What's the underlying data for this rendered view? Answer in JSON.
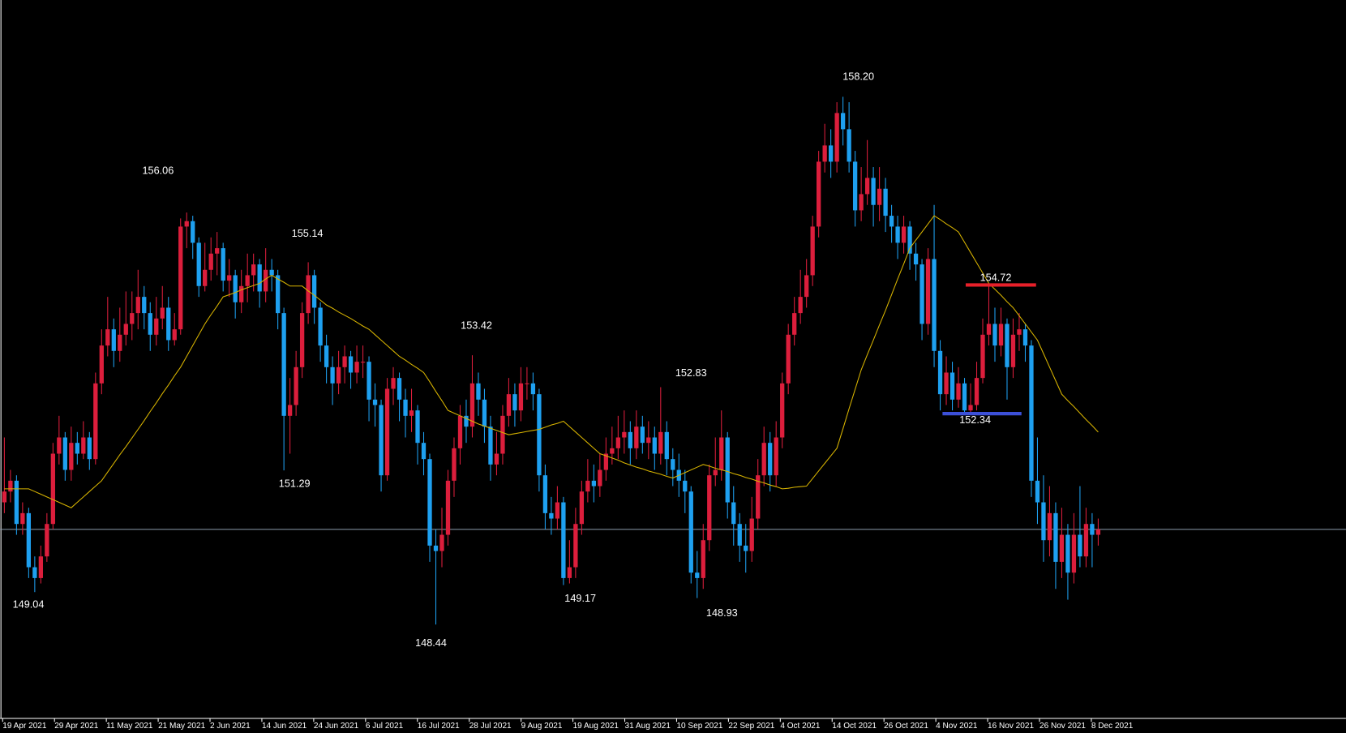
{
  "chart_data": {
    "type": "candlestick",
    "up_color": "#dc1e3c",
    "down_color": "#1ea0f0",
    "background": "#000000",
    "ylim": [
      146.72,
      159.99
    ],
    "current_price": 150.2,
    "candles": [
      [
        150.7,
        151.9,
        150.5,
        150.9
      ],
      [
        150.9,
        151.3,
        150.7,
        151.1
      ],
      [
        151.1,
        151.2,
        150.1,
        150.3
      ],
      [
        150.3,
        150.7,
        150.1,
        150.5
      ],
      [
        150.5,
        150.6,
        149.3,
        149.5
      ],
      [
        149.5,
        149.7,
        149.04,
        149.3
      ],
      [
        149.3,
        149.9,
        149.2,
        149.7
      ],
      [
        149.7,
        150.5,
        149.6,
        150.3
      ],
      [
        150.3,
        151.8,
        150.2,
        151.6
      ],
      [
        151.6,
        152.3,
        151.4,
        151.9
      ],
      [
        151.9,
        152.0,
        151.1,
        151.3
      ],
      [
        151.3,
        152.1,
        151.1,
        151.8
      ],
      [
        151.8,
        152.0,
        151.4,
        151.6
      ],
      [
        151.6,
        152.2,
        151.5,
        151.9
      ],
      [
        151.9,
        152.0,
        151.3,
        151.5
      ],
      [
        151.5,
        153.1,
        151.4,
        152.9
      ],
      [
        152.9,
        153.9,
        152.7,
        153.6
      ],
      [
        153.6,
        154.5,
        153.4,
        153.9
      ],
      [
        153.9,
        154.1,
        153.2,
        153.5
      ],
      [
        153.5,
        154.3,
        153.3,
        153.8
      ],
      [
        153.8,
        154.6,
        153.6,
        154.0
      ],
      [
        154.0,
        154.6,
        153.7,
        154.2
      ],
      [
        154.2,
        155.0,
        153.9,
        154.5
      ],
      [
        154.5,
        154.7,
        153.9,
        154.2
      ],
      [
        154.2,
        154.4,
        153.5,
        153.8
      ],
      [
        153.8,
        154.5,
        153.6,
        154.1
      ],
      [
        154.1,
        154.7,
        153.9,
        154.3
      ],
      [
        154.3,
        154.5,
        153.5,
        153.7
      ],
      [
        153.7,
        154.2,
        153.6,
        153.9
      ],
      [
        153.9,
        155.95,
        153.8,
        155.8
      ],
      [
        155.8,
        156.06,
        155.4,
        155.9
      ],
      [
        155.9,
        156.0,
        155.2,
        155.5
      ],
      [
        155.5,
        155.6,
        154.5,
        154.7
      ],
      [
        154.7,
        155.5,
        154.6,
        155.0
      ],
      [
        155.0,
        155.6,
        154.8,
        155.3
      ],
      [
        155.3,
        155.7,
        154.9,
        155.4
      ],
      [
        155.4,
        155.5,
        154.6,
        154.8
      ],
      [
        154.8,
        155.2,
        154.5,
        154.9
      ],
      [
        154.9,
        155.0,
        154.1,
        154.4
      ],
      [
        154.4,
        155.0,
        154.2,
        154.7
      ],
      [
        154.7,
        155.3,
        154.4,
        154.9
      ],
      [
        154.9,
        155.3,
        154.6,
        155.1
      ],
      [
        155.1,
        155.2,
        154.3,
        154.6
      ],
      [
        154.6,
        155.4,
        154.4,
        155.0
      ],
      [
        155.0,
        155.2,
        154.6,
        154.9
      ],
      [
        154.9,
        155.0,
        153.9,
        154.2
      ],
      [
        154.2,
        154.3,
        151.29,
        152.3
      ],
      [
        152.3,
        153.0,
        151.6,
        152.5
      ],
      [
        152.5,
        153.5,
        152.3,
        153.2
      ],
      [
        153.2,
        154.4,
        153.0,
        154.2
      ],
      [
        154.2,
        155.14,
        154.0,
        154.9
      ],
      [
        154.9,
        155.0,
        154.0,
        154.3
      ],
      [
        154.3,
        154.4,
        153.3,
        153.6
      ],
      [
        153.6,
        153.8,
        152.9,
        153.2
      ],
      [
        153.2,
        153.4,
        152.5,
        152.9
      ],
      [
        152.9,
        153.5,
        152.7,
        153.2
      ],
      [
        153.2,
        153.6,
        152.9,
        153.4
      ],
      [
        153.4,
        153.5,
        152.8,
        153.1
      ],
      [
        153.1,
        153.6,
        152.9,
        153.3
      ],
      [
        153.3,
        153.6,
        153.0,
        153.3
      ],
      [
        153.3,
        153.4,
        152.2,
        152.6
      ],
      [
        152.6,
        152.9,
        152.1,
        152.5
      ],
      [
        152.5,
        152.6,
        150.9,
        151.2
      ],
      [
        151.2,
        153.0,
        151.1,
        152.8
      ],
      [
        152.8,
        153.2,
        152.5,
        153.0
      ],
      [
        153.0,
        153.1,
        152.2,
        152.6
      ],
      [
        152.6,
        152.8,
        151.9,
        152.3
      ],
      [
        152.3,
        152.8,
        152.0,
        152.4
      ],
      [
        152.4,
        152.5,
        151.4,
        151.8
      ],
      [
        151.8,
        152.0,
        151.2,
        151.5
      ],
      [
        151.5,
        151.6,
        149.6,
        149.9
      ],
      [
        149.9,
        150.2,
        148.44,
        149.8
      ],
      [
        149.8,
        150.6,
        149.5,
        150.1
      ],
      [
        150.1,
        151.3,
        149.9,
        151.1
      ],
      [
        151.1,
        151.9,
        150.8,
        151.7
      ],
      [
        151.7,
        152.5,
        151.4,
        152.3
      ],
      [
        152.3,
        152.6,
        151.8,
        152.1
      ],
      [
        152.1,
        153.42,
        151.9,
        152.9
      ],
      [
        152.9,
        153.1,
        152.3,
        152.6
      ],
      [
        152.6,
        152.8,
        151.8,
        152.1
      ],
      [
        152.1,
        152.3,
        151.1,
        151.4
      ],
      [
        151.4,
        152.0,
        151.2,
        151.6
      ],
      [
        151.6,
        152.5,
        151.4,
        152.3
      ],
      [
        152.3,
        153.0,
        152.1,
        152.7
      ],
      [
        152.7,
        152.9,
        152.1,
        152.4
      ],
      [
        152.4,
        153.2,
        152.2,
        152.9
      ],
      [
        152.9,
        153.2,
        152.6,
        152.9
      ],
      [
        152.9,
        153.1,
        152.4,
        152.7
      ],
      [
        152.7,
        152.8,
        150.9,
        151.2
      ],
      [
        151.2,
        151.4,
        150.2,
        150.5
      ],
      [
        150.5,
        150.8,
        150.1,
        150.4
      ],
      [
        150.4,
        151.0,
        150.2,
        150.7
      ],
      [
        150.7,
        150.8,
        149.17,
        149.3
      ],
      [
        149.3,
        150.0,
        149.2,
        149.5
      ],
      [
        149.5,
        150.6,
        149.3,
        150.3
      ],
      [
        150.3,
        151.1,
        150.1,
        150.9
      ],
      [
        150.9,
        151.5,
        150.7,
        151.1
      ],
      [
        151.1,
        151.4,
        150.7,
        151.0
      ],
      [
        151.0,
        151.6,
        150.8,
        151.3
      ],
      [
        151.3,
        151.9,
        151.1,
        151.6
      ],
      [
        151.6,
        152.1,
        151.4,
        151.7
      ],
      [
        151.7,
        152.3,
        151.5,
        151.9
      ],
      [
        151.9,
        152.4,
        151.6,
        152.0
      ],
      [
        152.0,
        152.2,
        151.4,
        151.7
      ],
      [
        151.7,
        152.4,
        151.5,
        152.1
      ],
      [
        152.1,
        152.3,
        151.6,
        151.8
      ],
      [
        151.8,
        152.2,
        151.5,
        151.9
      ],
      [
        151.9,
        152.1,
        151.3,
        151.6
      ],
      [
        151.6,
        152.83,
        151.4,
        152.0
      ],
      [
        152.0,
        152.2,
        151.2,
        151.5
      ],
      [
        151.5,
        151.7,
        151.0,
        151.3
      ],
      [
        151.3,
        151.6,
        150.8,
        151.1
      ],
      [
        151.1,
        151.3,
        150.5,
        150.9
      ],
      [
        150.9,
        151.0,
        149.2,
        149.4
      ],
      [
        149.4,
        149.8,
        148.93,
        149.3
      ],
      [
        149.3,
        150.3,
        149.1,
        150.0
      ],
      [
        150.0,
        151.4,
        149.8,
        151.2
      ],
      [
        151.2,
        151.9,
        151.0,
        151.3
      ],
      [
        151.3,
        152.4,
        151.1,
        151.9
      ],
      [
        151.9,
        152.0,
        150.4,
        150.7
      ],
      [
        150.7,
        151.0,
        149.9,
        150.3
      ],
      [
        150.3,
        150.5,
        149.6,
        149.9
      ],
      [
        149.9,
        150.3,
        149.4,
        149.8
      ],
      [
        149.8,
        150.8,
        149.6,
        150.4
      ],
      [
        150.4,
        151.5,
        150.2,
        151.2
      ],
      [
        151.2,
        152.1,
        151.0,
        151.8
      ],
      [
        151.8,
        152.0,
        150.9,
        151.2
      ],
      [
        151.2,
        152.2,
        151.0,
        151.9
      ],
      [
        151.9,
        153.1,
        151.7,
        152.9
      ],
      [
        152.9,
        154.0,
        152.7,
        153.8
      ],
      [
        153.8,
        154.5,
        153.6,
        154.2
      ],
      [
        154.2,
        155.0,
        154.0,
        154.5
      ],
      [
        154.5,
        155.2,
        154.3,
        154.9
      ],
      [
        154.9,
        156.0,
        154.7,
        155.8
      ],
      [
        155.8,
        157.2,
        155.6,
        157.0
      ],
      [
        157.0,
        157.7,
        156.8,
        157.3
      ],
      [
        157.3,
        157.6,
        156.7,
        157.0
      ],
      [
        157.0,
        158.1,
        156.8,
        157.9
      ],
      [
        157.9,
        158.2,
        157.3,
        157.6
      ],
      [
        157.6,
        158.1,
        156.8,
        157.0
      ],
      [
        157.0,
        157.2,
        155.8,
        156.1
      ],
      [
        156.1,
        156.9,
        155.9,
        156.4
      ],
      [
        156.4,
        157.4,
        156.2,
        156.7
      ],
      [
        156.7,
        156.9,
        155.8,
        156.2
      ],
      [
        156.2,
        156.9,
        155.9,
        156.5
      ],
      [
        156.5,
        156.7,
        155.7,
        156.0
      ],
      [
        156.0,
        156.2,
        155.5,
        155.8
      ],
      [
        155.8,
        156.0,
        155.2,
        155.5
      ],
      [
        155.5,
        156.0,
        155.3,
        155.8
      ],
      [
        155.8,
        155.9,
        155.0,
        155.3
      ],
      [
        155.3,
        155.5,
        154.8,
        155.1
      ],
      [
        155.1,
        155.2,
        153.7,
        154.0
      ],
      [
        154.0,
        155.4,
        153.8,
        155.2
      ],
      [
        155.2,
        156.2,
        153.2,
        153.5
      ],
      [
        153.5,
        153.7,
        152.4,
        152.7
      ],
      [
        152.7,
        153.4,
        152.5,
        153.1
      ],
      [
        153.1,
        153.3,
        152.4,
        152.6
      ],
      [
        152.6,
        153.2,
        152.45,
        152.9
      ],
      [
        152.9,
        153.0,
        152.34,
        152.4
      ],
      [
        152.4,
        152.9,
        152.35,
        152.5
      ],
      [
        152.5,
        153.3,
        152.4,
        153.0
      ],
      [
        153.0,
        154.1,
        152.9,
        153.8
      ],
      [
        153.8,
        154.72,
        153.6,
        154.0
      ],
      [
        154.0,
        154.3,
        153.3,
        153.6
      ],
      [
        153.6,
        154.3,
        153.4,
        154.0
      ],
      [
        154.0,
        154.1,
        152.6,
        153.2
      ],
      [
        153.2,
        154.1,
        153.0,
        153.8
      ],
      [
        153.8,
        154.2,
        153.5,
        153.9
      ],
      [
        153.9,
        154.0,
        153.3,
        153.6
      ],
      [
        153.6,
        153.7,
        150.8,
        151.1
      ],
      [
        151.1,
        151.9,
        150.3,
        150.7
      ],
      [
        150.7,
        151.2,
        149.6,
        150.0
      ],
      [
        150.0,
        151.0,
        149.7,
        150.5
      ],
      [
        150.5,
        150.7,
        149.1,
        149.6
      ],
      [
        149.6,
        150.6,
        149.3,
        150.1
      ],
      [
        150.1,
        150.3,
        148.9,
        149.4
      ],
      [
        149.4,
        150.5,
        149.2,
        150.1
      ],
      [
        150.1,
        151.0,
        149.5,
        149.7
      ],
      [
        149.7,
        150.6,
        149.5,
        150.3
      ],
      [
        150.3,
        150.5,
        149.5,
        150.1
      ],
      [
        150.1,
        150.4,
        149.9,
        150.2
      ]
    ],
    "moving_average": {
      "color": "#d8b400",
      "values": [
        150.95,
        150.95,
        150.95,
        150.95,
        150.95,
        150.9,
        150.85,
        150.8,
        150.75,
        150.7,
        150.65,
        150.6,
        150.7,
        150.8,
        150.9,
        151.0,
        151.1,
        151.26,
        151.42,
        151.58,
        151.73,
        151.89,
        152.05,
        152.21,
        152.38,
        152.54,
        152.71,
        152.87,
        153.04,
        153.2,
        153.4,
        153.6,
        153.8,
        154.0,
        154.17,
        154.33,
        154.5,
        154.54,
        154.58,
        154.63,
        154.67,
        154.71,
        154.75,
        154.83,
        154.9,
        154.83,
        154.77,
        154.7,
        154.7,
        154.7,
        154.61,
        154.53,
        154.44,
        154.35,
        154.29,
        154.22,
        154.16,
        154.1,
        154.03,
        153.96,
        153.9,
        153.8,
        153.7,
        153.6,
        153.5,
        153.4,
        153.33,
        153.25,
        153.18,
        153.1,
        152.93,
        152.75,
        152.58,
        152.4,
        152.35,
        152.3,
        152.25,
        152.2,
        152.15,
        152.11,
        152.07,
        152.03,
        151.99,
        151.95,
        151.97,
        151.99,
        152.01,
        152.03,
        152.05,
        152.09,
        152.13,
        152.16,
        152.2,
        152.1,
        152.0,
        151.9,
        151.8,
        151.7,
        151.6,
        151.56,
        151.52,
        151.48,
        151.43,
        151.39,
        151.35,
        151.32,
        151.28,
        151.25,
        151.22,
        151.18,
        151.15,
        151.2,
        151.25,
        151.3,
        151.35,
        151.4,
        151.37,
        151.33,
        151.3,
        151.27,
        151.23,
        151.2,
        151.16,
        151.13,
        151.09,
        151.06,
        151.02,
        150.99,
        150.95,
        150.96,
        150.98,
        150.99,
        151.0,
        151.14,
        151.28,
        151.42,
        151.56,
        151.7,
        152.06,
        152.43,
        152.79,
        153.15,
        153.43,
        153.7,
        153.98,
        154.25,
        154.54,
        154.83,
        155.11,
        155.4,
        155.55,
        155.7,
        155.85,
        156.0,
        155.93,
        155.85,
        155.78,
        155.7,
        155.51,
        155.32,
        155.13,
        154.94,
        154.75,
        154.64,
        154.53,
        154.41,
        154.3,
        154.15,
        154.0,
        153.85,
        153.7,
        153.45,
        153.2,
        152.95,
        152.7,
        152.58,
        152.47,
        152.35,
        152.23,
        152.12,
        152.0
      ]
    },
    "levels": [
      {
        "value": 154.72,
        "color": "#e8202a"
      },
      {
        "value": 152.34,
        "color": "#3c50d8"
      }
    ],
    "annotations": [
      156.06,
      155.14,
      153.42,
      152.83,
      {
        "value": 158.2,
        "label": "158.20"
      },
      151.29,
      149.04,
      148.44,
      149.17,
      148.93
    ],
    "date_labels": [
      "19 Apr 2021",
      "29 Apr 2021",
      "11 May 2021",
      "21 May 2021",
      "2 Jun 2021",
      "14 Jun 2021",
      "24 Jun 2021",
      "6 Jul 2021",
      "16 Jul 2021",
      "28 Jul 2021",
      "9 Aug 2021",
      "19 Aug 2021",
      "31 Aug 2021",
      "10 Sep 2021",
      "22 Sep 2021",
      "4 Oct 2021",
      "14 Oct 2021",
      "26 Oct 2021",
      "4 Nov 2021",
      "16 Nov 2021",
      "26 Nov 2021",
      "8 Dec 2021"
    ]
  }
}
